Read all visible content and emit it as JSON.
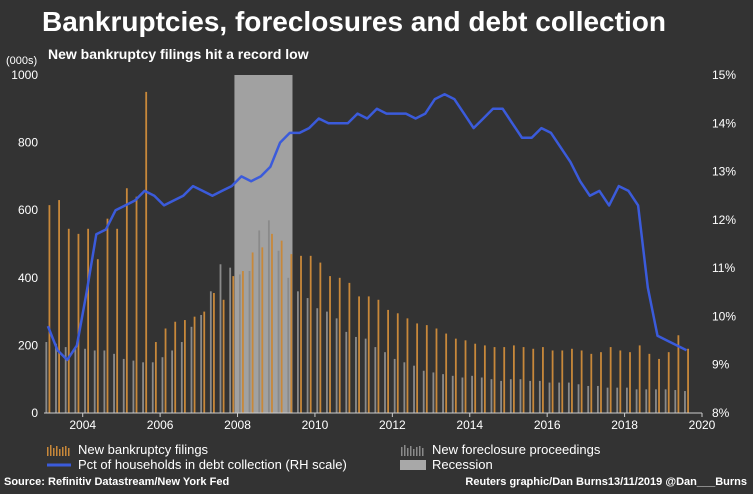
{
  "title": "Bankruptcies, foreclosures and debt collection",
  "subtitle": "New bankruptcy filings hit a record low",
  "source": "Source: Refinitiv Datastream/New York Fed",
  "credit": "Reuters graphic/Dan Burns13/11/2019 @Dan___Burns",
  "colors": {
    "background": "#333333",
    "bankruptcy": "#c8883a",
    "foreclosure": "#8a8a8a",
    "debt_line": "#3b5bdb",
    "recession": "#bdbdbd",
    "text": "#ffffff"
  },
  "legend": {
    "bankruptcy": "New bankruptcy filings",
    "foreclosure": "New foreclosure proceedings",
    "debt": "Pct of households in debt collection (RH scale)",
    "recession": "Recession"
  },
  "chart_data": {
    "type": "bar",
    "left_axis": {
      "unit_label": "(000s)",
      "range": [
        0,
        1000
      ],
      "ticks": [
        "0",
        "200",
        "400",
        "600",
        "800",
        "1000"
      ]
    },
    "right_axis": {
      "range": [
        8,
        15
      ],
      "ticks": [
        "8%",
        "9%",
        "10%",
        "11%",
        "12%",
        "13%",
        "14%",
        "15%"
      ]
    },
    "x_axis": {
      "range": [
        2003,
        2020
      ],
      "ticks": [
        "2004",
        "2006",
        "2008",
        "2010",
        "2012",
        "2014",
        "2016",
        "2018",
        "2020"
      ]
    },
    "recession": {
      "start": 2007.92,
      "end": 2009.42
    },
    "quarters_start": 2003.0,
    "series": [
      {
        "name": "New bankruptcy filings",
        "axis": "left",
        "values": [
          615,
          630,
          545,
          530,
          545,
          455,
          575,
          545,
          665,
          640,
          950,
          210,
          250,
          270,
          275,
          285,
          300,
          355,
          335,
          405,
          420,
          475,
          490,
          530,
          510,
          470,
          465,
          465,
          445,
          405,
          400,
          385,
          345,
          345,
          335,
          305,
          295,
          280,
          265,
          260,
          250,
          235,
          220,
          215,
          205,
          200,
          195,
          195,
          200,
          195,
          190,
          195,
          185,
          185,
          190,
          185,
          175,
          180,
          195,
          185,
          180,
          200,
          175,
          160,
          180,
          230,
          190
        ]
      },
      {
        "name": "New foreclosure proceedings",
        "axis": "left",
        "values": [
          210,
          205,
          195,
          190,
          190,
          185,
          185,
          175,
          160,
          155,
          150,
          150,
          165,
          185,
          210,
          255,
          290,
          360,
          440,
          430,
          410,
          420,
          540,
          570,
          480,
          400,
          360,
          340,
          310,
          300,
          280,
          240,
          225,
          220,
          195,
          180,
          160,
          150,
          140,
          125,
          120,
          115,
          110,
          105,
          110,
          105,
          100,
          95,
          100,
          100,
          95,
          95,
          90,
          90,
          90,
          85,
          80,
          80,
          75,
          75,
          75,
          70,
          70,
          70,
          70,
          68,
          65
        ]
      },
      {
        "name": "Pct of households in debt collection (RH scale)",
        "axis": "right",
        "values": [
          9.8,
          9.3,
          9.1,
          9.4,
          10.5,
          11.7,
          11.8,
          12.2,
          12.3,
          12.4,
          12.6,
          12.5,
          12.3,
          12.4,
          12.5,
          12.7,
          12.6,
          12.5,
          12.6,
          12.7,
          12.9,
          12.8,
          12.9,
          13.1,
          13.6,
          13.8,
          13.8,
          13.9,
          14.1,
          14.0,
          14.0,
          14.0,
          14.2,
          14.1,
          14.3,
          14.2,
          14.2,
          14.2,
          14.1,
          14.2,
          14.5,
          14.6,
          14.5,
          14.2,
          13.9,
          14.1,
          14.3,
          14.3,
          14.0,
          13.7,
          13.7,
          13.9,
          13.8,
          13.5,
          13.2,
          12.8,
          12.5,
          12.6,
          12.3,
          12.7,
          12.6,
          12.3,
          10.6,
          9.6,
          9.5,
          9.4,
          9.3
        ]
      }
    ]
  }
}
